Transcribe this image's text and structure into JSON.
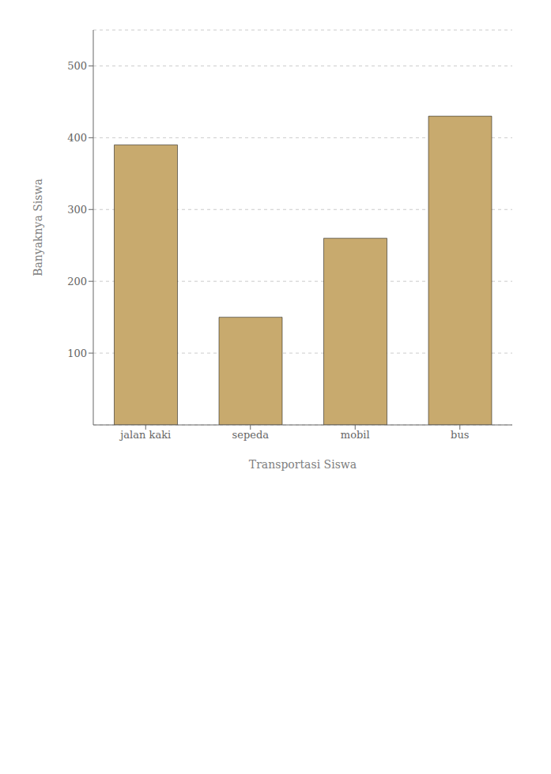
{
  "chart_data": {
    "type": "bar",
    "categories": [
      "jalan kaki",
      "sepeda",
      "mobil",
      "bus"
    ],
    "values": [
      390,
      150,
      260,
      430
    ],
    "color": "#C8AA6E",
    "xlabel": "Transportasi Siswa",
    "ylabel": "Banyaknya Siswa",
    "ylim": [
      0,
      550
    ],
    "yticks": [
      100,
      200,
      300,
      400,
      500
    ],
    "grid": true
  }
}
